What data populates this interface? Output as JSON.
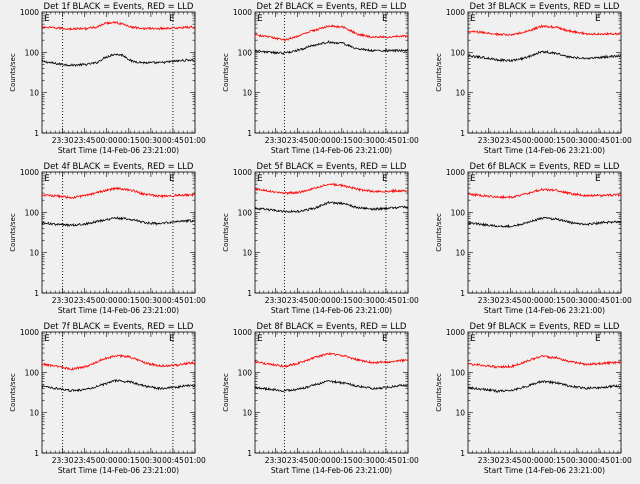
{
  "figure": {
    "x_ticks": [
      "23:30",
      "23:45",
      "00:00",
      "00:15",
      "00:30",
      "00:45",
      "01:00"
    ],
    "y_ticks": [
      "1",
      "10",
      "100",
      "1000"
    ],
    "ylabel": "Counts/sec",
    "xlabel": "Start Time (14-Feb-06 23:21:00)",
    "corner_left": "E",
    "corner_right": "E",
    "colors": {
      "events": "#000000",
      "lld": "#ff0000",
      "background": "#f0f0f0"
    }
  },
  "chart_data": [
    {
      "type": "line",
      "title": "Det 1f BLACK = Events, RED = LLD",
      "yscale": "log",
      "ylim": [
        1,
        1000
      ],
      "x_range_minutes": [
        -5,
        99
      ],
      "marker_lines_minutes": [
        9,
        84
      ],
      "series": [
        {
          "key": "events",
          "color": "#000000",
          "points": [
            [
              -5,
              60
            ],
            [
              5,
              52
            ],
            [
              15,
              48
            ],
            [
              25,
              50
            ],
            [
              32,
              55
            ],
            [
              38,
              75
            ],
            [
              44,
              90
            ],
            [
              50,
              85
            ],
            [
              56,
              60
            ],
            [
              65,
              55
            ],
            [
              75,
              55
            ],
            [
              85,
              60
            ],
            [
              95,
              65
            ],
            [
              99,
              63
            ]
          ]
        },
        {
          "key": "lld",
          "color": "#ff0000",
          "points": [
            [
              -5,
              420
            ],
            [
              5,
              400
            ],
            [
              15,
              380
            ],
            [
              25,
              390
            ],
            [
              32,
              420
            ],
            [
              38,
              520
            ],
            [
              44,
              560
            ],
            [
              50,
              500
            ],
            [
              56,
              420
            ],
            [
              65,
              390
            ],
            [
              75,
              390
            ],
            [
              85,
              400
            ],
            [
              95,
              420
            ],
            [
              99,
              420
            ]
          ]
        }
      ]
    },
    {
      "type": "line",
      "title": "Det 2f BLACK = Events, RED = LLD",
      "yscale": "log",
      "ylim": [
        1,
        1000
      ],
      "x_range_minutes": [
        -5,
        99
      ],
      "marker_lines_minutes": [
        15,
        84
      ],
      "series": [
        {
          "key": "events",
          "color": "#000000",
          "points": [
            [
              -5,
              110
            ],
            [
              5,
              100
            ],
            [
              15,
              95
            ],
            [
              25,
              115
            ],
            [
              35,
              150
            ],
            [
              45,
              180
            ],
            [
              55,
              165
            ],
            [
              65,
              120
            ],
            [
              75,
              110
            ],
            [
              85,
              110
            ],
            [
              95,
              110
            ],
            [
              99,
              110
            ]
          ]
        },
        {
          "key": "lld",
          "color": "#ff0000",
          "points": [
            [
              -5,
              270
            ],
            [
              5,
              240
            ],
            [
              15,
              200
            ],
            [
              25,
              260
            ],
            [
              35,
              350
            ],
            [
              45,
              450
            ],
            [
              55,
              420
            ],
            [
              65,
              280
            ],
            [
              75,
              240
            ],
            [
              85,
              240
            ],
            [
              95,
              250
            ],
            [
              99,
              250
            ]
          ]
        }
      ]
    },
    {
      "type": "line",
      "title": "Det 3f BLACK = Events, RED = LLD",
      "yscale": "log",
      "ylim": [
        1,
        1000
      ],
      "x_range_minutes": [
        -5,
        99
      ],
      "marker_lines_minutes": [],
      "series": [
        {
          "key": "events",
          "color": "#000000",
          "points": [
            [
              -5,
              80
            ],
            [
              5,
              75
            ],
            [
              15,
              65
            ],
            [
              25,
              62
            ],
            [
              35,
              75
            ],
            [
              45,
              105
            ],
            [
              55,
              95
            ],
            [
              65,
              75
            ],
            [
              75,
              70
            ],
            [
              85,
              75
            ],
            [
              95,
              80
            ],
            [
              99,
              80
            ]
          ]
        },
        {
          "key": "lld",
          "color": "#ff0000",
          "points": [
            [
              -5,
              330
            ],
            [
              5,
              310
            ],
            [
              15,
              280
            ],
            [
              25,
              270
            ],
            [
              35,
              330
            ],
            [
              45,
              440
            ],
            [
              55,
              420
            ],
            [
              65,
              330
            ],
            [
              75,
              290
            ],
            [
              85,
              280
            ],
            [
              95,
              290
            ],
            [
              99,
              290
            ]
          ]
        }
      ]
    },
    {
      "type": "line",
      "title": "Det 4f BLACK = Events, RED = LLD",
      "yscale": "log",
      "ylim": [
        1,
        1000
      ],
      "x_range_minutes": [
        -5,
        99
      ],
      "marker_lines_minutes": [
        9,
        84
      ],
      "series": [
        {
          "key": "events",
          "color": "#000000",
          "points": [
            [
              -5,
              55
            ],
            [
              5,
              50
            ],
            [
              15,
              48
            ],
            [
              25,
              52
            ],
            [
              35,
              62
            ],
            [
              45,
              72
            ],
            [
              55,
              68
            ],
            [
              65,
              55
            ],
            [
              75,
              52
            ],
            [
              85,
              58
            ],
            [
              95,
              62
            ],
            [
              99,
              60
            ]
          ]
        },
        {
          "key": "lld",
          "color": "#ff0000",
          "points": [
            [
              -5,
              270
            ],
            [
              5,
              255
            ],
            [
              15,
              230
            ],
            [
              25,
              260
            ],
            [
              35,
              330
            ],
            [
              45,
              390
            ],
            [
              55,
              360
            ],
            [
              65,
              280
            ],
            [
              75,
              250
            ],
            [
              85,
              260
            ],
            [
              95,
              270
            ],
            [
              99,
              270
            ]
          ]
        }
      ]
    },
    {
      "type": "line",
      "title": "Det 5f BLACK = Events, RED = LLD",
      "yscale": "log",
      "ylim": [
        1,
        1000
      ],
      "x_range_minutes": [
        -5,
        99
      ],
      "marker_lines_minutes": [
        15,
        84
      ],
      "series": [
        {
          "key": "events",
          "color": "#000000",
          "points": [
            [
              -5,
              125
            ],
            [
              5,
              115
            ],
            [
              15,
              105
            ],
            [
              25,
              105
            ],
            [
              35,
              125
            ],
            [
              45,
              175
            ],
            [
              55,
              165
            ],
            [
              65,
              130
            ],
            [
              75,
              120
            ],
            [
              85,
              125
            ],
            [
              95,
              135
            ],
            [
              99,
              130
            ]
          ]
        },
        {
          "key": "lld",
          "color": "#ff0000",
          "points": [
            [
              -5,
              380
            ],
            [
              5,
              340
            ],
            [
              15,
              300
            ],
            [
              25,
              310
            ],
            [
              35,
              390
            ],
            [
              45,
              500
            ],
            [
              55,
              460
            ],
            [
              65,
              370
            ],
            [
              75,
              330
            ],
            [
              85,
              330
            ],
            [
              95,
              350
            ],
            [
              99,
              350
            ]
          ]
        }
      ]
    },
    {
      "type": "line",
      "title": "Det 6f BLACK = Events, RED = LLD",
      "yscale": "log",
      "ylim": [
        1,
        1000
      ],
      "x_range_minutes": [
        -5,
        99
      ],
      "marker_lines_minutes": [],
      "series": [
        {
          "key": "events",
          "color": "#000000",
          "points": [
            [
              -5,
              55
            ],
            [
              5,
              50
            ],
            [
              15,
              46
            ],
            [
              25,
              45
            ],
            [
              35,
              55
            ],
            [
              45,
              72
            ],
            [
              55,
              68
            ],
            [
              65,
              55
            ],
            [
              75,
              50
            ],
            [
              85,
              55
            ],
            [
              95,
              58
            ],
            [
              99,
              58
            ]
          ]
        },
        {
          "key": "lld",
          "color": "#ff0000",
          "points": [
            [
              -5,
              280
            ],
            [
              5,
              260
            ],
            [
              15,
              240
            ],
            [
              25,
              240
            ],
            [
              35,
              290
            ],
            [
              45,
              370
            ],
            [
              55,
              350
            ],
            [
              65,
              290
            ],
            [
              75,
              260
            ],
            [
              85,
              260
            ],
            [
              95,
              270
            ],
            [
              99,
              270
            ]
          ]
        }
      ]
    },
    {
      "type": "line",
      "title": "Det 7f BLACK = Events, RED = LLD",
      "yscale": "log",
      "ylim": [
        1,
        1000
      ],
      "x_range_minutes": [
        -5,
        99
      ],
      "marker_lines_minutes": [
        9,
        84
      ],
      "series": [
        {
          "key": "events",
          "color": "#000000",
          "points": [
            [
              -5,
              45
            ],
            [
              5,
              40
            ],
            [
              15,
              35
            ],
            [
              25,
              38
            ],
            [
              35,
              48
            ],
            [
              45,
              62
            ],
            [
              55,
              58
            ],
            [
              65,
              45
            ],
            [
              75,
              40
            ],
            [
              85,
              42
            ],
            [
              95,
              48
            ],
            [
              99,
              45
            ]
          ]
        },
        {
          "key": "lld",
          "color": "#ff0000",
          "points": [
            [
              -5,
              160
            ],
            [
              5,
              140
            ],
            [
              15,
              120
            ],
            [
              25,
              140
            ],
            [
              35,
              200
            ],
            [
              45,
              260
            ],
            [
              55,
              240
            ],
            [
              65,
              170
            ],
            [
              75,
              145
            ],
            [
              85,
              150
            ],
            [
              95,
              170
            ],
            [
              99,
              170
            ]
          ]
        }
      ]
    },
    {
      "type": "line",
      "title": "Det 8f BLACK = Events, RED = LLD",
      "yscale": "log",
      "ylim": [
        1,
        1000
      ],
      "x_range_minutes": [
        -5,
        99
      ],
      "marker_lines_minutes": [
        15,
        84
      ],
      "series": [
        {
          "key": "events",
          "color": "#000000",
          "points": [
            [
              -5,
              42
            ],
            [
              5,
              38
            ],
            [
              15,
              35
            ],
            [
              25,
              38
            ],
            [
              35,
              48
            ],
            [
              45,
              60
            ],
            [
              55,
              55
            ],
            [
              65,
              45
            ],
            [
              75,
              40
            ],
            [
              85,
              42
            ],
            [
              95,
              48
            ],
            [
              99,
              45
            ]
          ]
        },
        {
          "key": "lld",
          "color": "#ff0000",
          "points": [
            [
              -5,
              180
            ],
            [
              5,
              160
            ],
            [
              15,
              140
            ],
            [
              25,
              170
            ],
            [
              35,
              230
            ],
            [
              45,
              290
            ],
            [
              55,
              260
            ],
            [
              65,
              200
            ],
            [
              75,
              175
            ],
            [
              85,
              180
            ],
            [
              95,
              195
            ],
            [
              99,
              195
            ]
          ]
        }
      ]
    },
    {
      "type": "line",
      "title": "Det 9f BLACK = Events, RED = LLD",
      "yscale": "log",
      "ylim": [
        1,
        1000
      ],
      "x_range_minutes": [
        -5,
        99
      ],
      "marker_lines_minutes": [],
      "series": [
        {
          "key": "events",
          "color": "#000000",
          "points": [
            [
              -5,
              42
            ],
            [
              5,
              38
            ],
            [
              15,
              34
            ],
            [
              25,
              36
            ],
            [
              35,
              45
            ],
            [
              45,
              60
            ],
            [
              55,
              55
            ],
            [
              65,
              45
            ],
            [
              75,
              40
            ],
            [
              85,
              42
            ],
            [
              95,
              46
            ],
            [
              99,
              44
            ]
          ]
        },
        {
          "key": "lld",
          "color": "#ff0000",
          "points": [
            [
              -5,
              160
            ],
            [
              5,
              150
            ],
            [
              15,
              135
            ],
            [
              25,
              140
            ],
            [
              35,
              190
            ],
            [
              45,
              250
            ],
            [
              55,
              230
            ],
            [
              65,
              180
            ],
            [
              75,
              160
            ],
            [
              85,
              165
            ],
            [
              95,
              175
            ],
            [
              99,
              175
            ]
          ]
        }
      ]
    }
  ]
}
